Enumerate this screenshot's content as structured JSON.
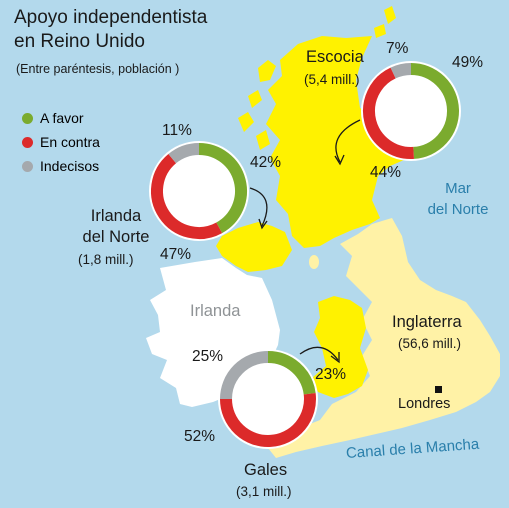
{
  "title_line1": "Apoyo independentista",
  "title_line2": "en Reino Unido",
  "subtitle": "(Entre paréntesis, población )",
  "colors": {
    "favor": "#7bab2e",
    "contra": "#dc2a2a",
    "indecisos": "#a5a9ad",
    "highlight": "#fff200",
    "england": "#fff2a6",
    "ireland": "#ffffff",
    "sea": "#b3d9ec"
  },
  "legend": [
    {
      "label": "A favor",
      "color": "#7bab2e"
    },
    {
      "label": "En contra",
      "color": "#dc2a2a"
    },
    {
      "label": "Indecisos",
      "color": "#a5a9ad"
    }
  ],
  "regions": {
    "escocia": {
      "name": "Escocia",
      "population": "(5,4 mill.)",
      "favor": "49%",
      "contra": "44%",
      "indecisos": "7%"
    },
    "irlanda_norte": {
      "name_line1": "Irlanda",
      "name_line2": "del Norte",
      "population": "(1,8 mill.)",
      "favor": "42%",
      "contra": "47%",
      "indecisos": "11%"
    },
    "gales": {
      "name": "Gales",
      "population": "(3,1 mill.)",
      "favor": "23%",
      "contra": "52%",
      "indecisos": "25%"
    },
    "inglaterra": {
      "name": "Inglaterra",
      "population": "(56,6 mill.)"
    }
  },
  "labels": {
    "irlanda": "Irlanda",
    "londres": "Londres",
    "mar_line1": "Mar",
    "mar_line2": "del Norte",
    "canal": "Canal de la Mancha"
  },
  "chart_data": [
    {
      "type": "pie",
      "title": "Escocia",
      "categories": [
        "A favor",
        "En contra",
        "Indecisos"
      ],
      "values": [
        49,
        44,
        7
      ]
    },
    {
      "type": "pie",
      "title": "Irlanda del Norte",
      "categories": [
        "A favor",
        "En contra",
        "Indecisos"
      ],
      "values": [
        42,
        47,
        11
      ]
    },
    {
      "type": "pie",
      "title": "Gales",
      "categories": [
        "A favor",
        "En contra",
        "Indecisos"
      ],
      "values": [
        23,
        52,
        25
      ]
    }
  ]
}
